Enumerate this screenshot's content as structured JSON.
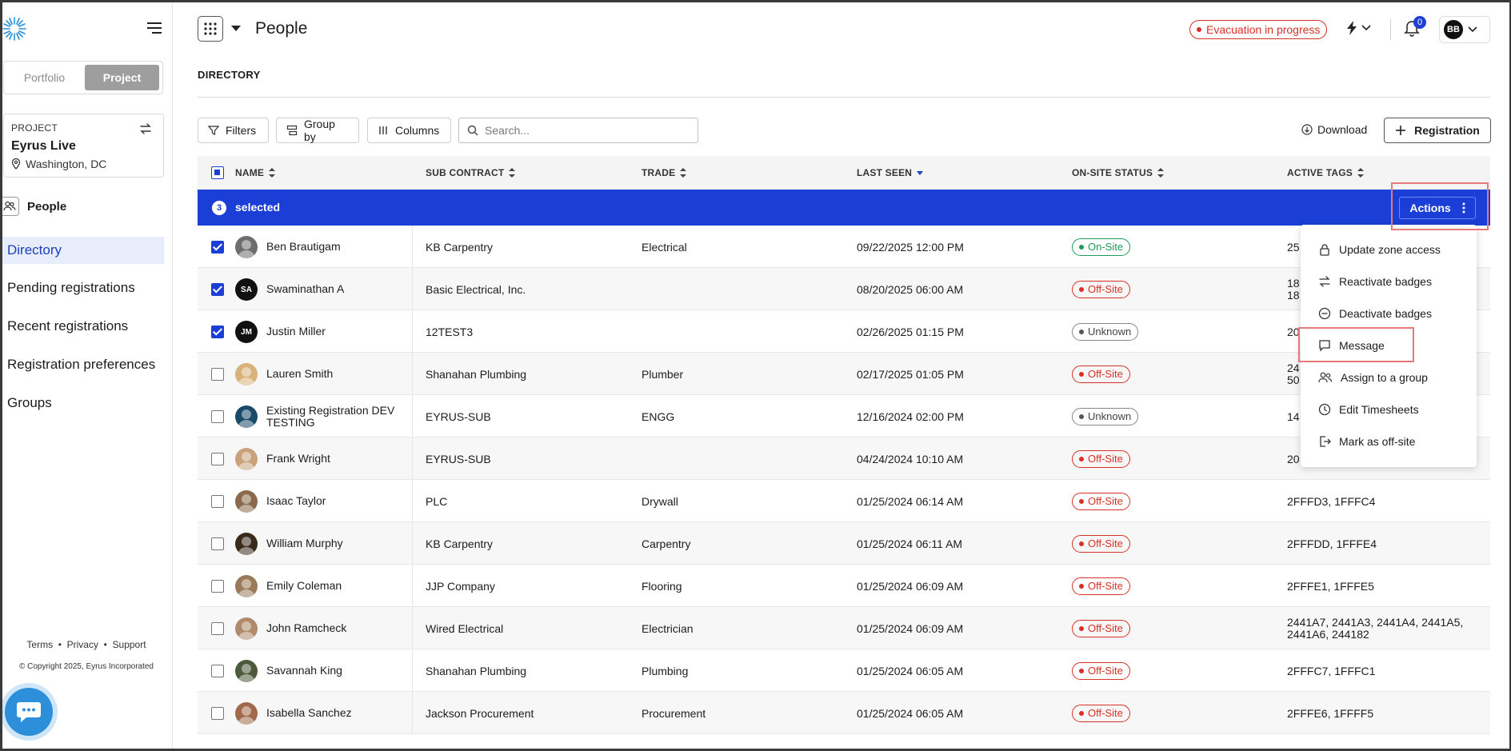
{
  "app": {
    "page_title": "People",
    "evacuation_status": "Evacuation in progress",
    "notifications_count": "0",
    "user_initials": "BB"
  },
  "sidebar": {
    "toggle": {
      "portfolio": "Portfolio",
      "project": "Project"
    },
    "project_card": {
      "label": "PROJECT",
      "name": "Eyrus Live",
      "location": "Washington, DC"
    },
    "section": "People",
    "nav": [
      "Directory",
      "Pending registrations",
      "Recent registrations",
      "Registration preferences",
      "Groups"
    ],
    "footer_links": {
      "terms": "Terms",
      "privacy": "Privacy",
      "support": "Support"
    },
    "copyright": "© Copyright 2025, Eyrus Incorporated"
  },
  "directory": {
    "heading": "DIRECTORY",
    "toolbar": {
      "filters": "Filters",
      "group_by": "Group by",
      "columns": "Columns",
      "search_placeholder": "Search...",
      "download": "Download",
      "registration": "Registration"
    },
    "columns": [
      "NAME",
      "SUB CONTRACT",
      "TRADE",
      "LAST SEEN",
      "ON-SITE STATUS",
      "ACTIVE TAGS"
    ],
    "selection": {
      "count": "3",
      "label": "selected",
      "actions": "Actions"
    },
    "rows": [
      {
        "checked": true,
        "initials": "",
        "avatar_color": "#6d6d6d",
        "name": "Ben Brautigam",
        "sub": "KB Carpentry",
        "trade": "Electrical",
        "seen": "09/22/2025 12:00 PM",
        "status": "On-Site",
        "status_kind": "on",
        "tags": "25"
      },
      {
        "checked": true,
        "initials": "SA",
        "avatar_color": "#111111",
        "name": "Swaminathan A",
        "sub": "Basic Electrical, Inc.",
        "trade": "",
        "seen": "08/20/2025 06:00 AM",
        "status": "Off-Site",
        "status_kind": "off",
        "tags": "18",
        "tags2": "18"
      },
      {
        "checked": true,
        "initials": "JM",
        "avatar_color": "#111111",
        "name": "Justin Miller",
        "sub": "12TEST3",
        "trade": "",
        "seen": "02/26/2025 01:15 PM",
        "status": "Unknown",
        "status_kind": "unk",
        "tags": "20"
      },
      {
        "checked": false,
        "initials": "",
        "avatar_color": "#d8b27a",
        "name": "Lauren Smith",
        "sub": "Shanahan Plumbing",
        "trade": "Plumber",
        "seen": "02/17/2025 01:05 PM",
        "status": "Off-Site",
        "status_kind": "off",
        "tags": "24",
        "tags2": "50"
      },
      {
        "checked": false,
        "initials": "",
        "avatar_color": "#1a4a6a",
        "name": "Existing Registration DEV TESTING",
        "sub": "EYRUS-SUB",
        "trade": "ENGG",
        "seen": "12/16/2024 02:00 PM",
        "status": "Unknown",
        "status_kind": "unk",
        "tags": "14"
      },
      {
        "checked": false,
        "initials": "",
        "avatar_color": "#c9a27c",
        "name": "Frank Wright",
        "sub": "EYRUS-SUB",
        "trade": "",
        "seen": "04/24/2024 10:10 AM",
        "status": "Off-Site",
        "status_kind": "off",
        "tags": "20"
      },
      {
        "checked": false,
        "initials": "",
        "avatar_color": "#8a6a4a",
        "name": "Isaac Taylor",
        "sub": "PLC",
        "trade": "Drywall",
        "seen": "01/25/2024 06:14 AM",
        "status": "Off-Site",
        "status_kind": "off",
        "tags": "2FFFD3, 1FFFC4"
      },
      {
        "checked": false,
        "initials": "",
        "avatar_color": "#3a2a1a",
        "name": "William Murphy",
        "sub": "KB Carpentry",
        "trade": "Carpentry",
        "seen": "01/25/2024 06:11 AM",
        "status": "Off-Site",
        "status_kind": "off",
        "tags": "2FFFDD, 1FFFE4"
      },
      {
        "checked": false,
        "initials": "",
        "avatar_color": "#9a7a5a",
        "name": "Emily Coleman",
        "sub": "JJP Company",
        "trade": "Flooring",
        "seen": "01/25/2024 06:09 AM",
        "status": "Off-Site",
        "status_kind": "off",
        "tags": "2FFFE1, 1FFFE5"
      },
      {
        "checked": false,
        "initials": "",
        "avatar_color": "#b08a6a",
        "name": "John Ramcheck",
        "sub": "Wired Electrical",
        "trade": "Electrician",
        "seen": "01/25/2024 06:09 AM",
        "status": "Off-Site",
        "status_kind": "off",
        "tags": "2441A7, 2441A3, 2441A4, 2441A5,",
        "tags2": "2441A6, 244182"
      },
      {
        "checked": false,
        "initials": "",
        "avatar_color": "#4a5a3a",
        "name": "Savannah King",
        "sub": "Shanahan Plumbing",
        "trade": "Plumbing",
        "seen": "01/25/2024 06:05 AM",
        "status": "Off-Site",
        "status_kind": "off",
        "tags": "2FFFC7, 1FFFC1"
      },
      {
        "checked": false,
        "initials": "",
        "avatar_color": "#a06a4a",
        "name": "Isabella Sanchez",
        "sub": "Jackson Procurement",
        "trade": "Procurement",
        "seen": "01/25/2024 06:05 AM",
        "status": "Off-Site",
        "status_kind": "off",
        "tags": "2FFFE6, 1FFFF5"
      }
    ]
  },
  "actions_menu": [
    {
      "label": "Update zone access",
      "icon": "lock-icon"
    },
    {
      "label": "Reactivate badges",
      "icon": "swap-arrows-icon"
    },
    {
      "label": "Deactivate badges",
      "icon": "minus-circle-icon"
    },
    {
      "label": "Message",
      "icon": "chat-bubble-icon"
    },
    {
      "label": "Assign to a group",
      "icon": "group-icon"
    },
    {
      "label": "Edit Timesheets",
      "icon": "clock-icon"
    },
    {
      "label": "Mark as off-site",
      "icon": "exit-icon"
    }
  ],
  "colors": {
    "accent": "#1b3fd6",
    "on_site": "#1e9b5a",
    "off_site": "#d93025",
    "highlight": "#e8787c"
  }
}
